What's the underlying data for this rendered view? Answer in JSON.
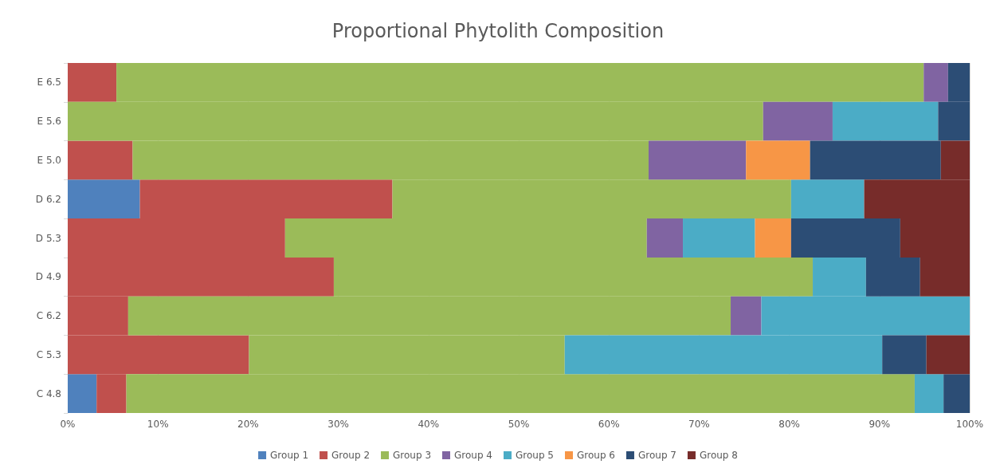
{
  "chart_data": {
    "type": "bar",
    "orientation": "horizontal",
    "stacked": true,
    "title": "Proportional Phytolith Composition",
    "categories": [
      "E 6.5",
      "E 5.6",
      "E 5.0",
      "D 6.2",
      "D 5.3",
      "D 4.9",
      "C 6.2",
      "C 5.3",
      "C 4.8"
    ],
    "series": [
      {
        "name": "Group 1",
        "color": "#4f81bd",
        "values": [
          0,
          0,
          0,
          8.0,
          0,
          0,
          0,
          0,
          3.2
        ]
      },
      {
        "name": "Group 2",
        "color": "#c0504d",
        "values": [
          5.4,
          0,
          7.2,
          28.0,
          24.1,
          29.5,
          6.7,
          20.1,
          3.3
        ]
      },
      {
        "name": "Group 3",
        "color": "#9bbb59",
        "values": [
          89.5,
          77.1,
          57.2,
          44.2,
          40.1,
          53.1,
          66.8,
          35.0,
          87.4
        ]
      },
      {
        "name": "Group 4",
        "color": "#8064a2",
        "values": [
          2.7,
          7.7,
          10.8,
          0,
          4.0,
          0,
          3.4,
          0,
          0
        ]
      },
      {
        "name": "Group 5",
        "color": "#4bacc6",
        "values": [
          0,
          11.7,
          0,
          8.1,
          8.0,
          5.9,
          23.1,
          35.2,
          3.2
        ]
      },
      {
        "name": "Group 6",
        "color": "#f79646",
        "values": [
          0,
          0,
          7.1,
          0,
          4.0,
          0,
          0,
          0,
          0
        ]
      },
      {
        "name": "Group 7",
        "color": "#2c4d75",
        "values": [
          2.4,
          3.5,
          14.5,
          0,
          12.1,
          6.0,
          0,
          4.9,
          2.9
        ]
      },
      {
        "name": "Group 8",
        "color": "#772c2a",
        "values": [
          0,
          0,
          3.2,
          11.7,
          7.7,
          5.5,
          0,
          4.8,
          0
        ]
      }
    ],
    "xlim": [
      0,
      100
    ],
    "xticks": [
      {
        "value": 0,
        "label": "0%"
      },
      {
        "value": 10,
        "label": "10%"
      },
      {
        "value": 20,
        "label": "20%"
      },
      {
        "value": 30,
        "label": "30%"
      },
      {
        "value": 40,
        "label": "40%"
      },
      {
        "value": 50,
        "label": "50%"
      },
      {
        "value": 60,
        "label": "60%"
      },
      {
        "value": 70,
        "label": "70%"
      },
      {
        "value": 80,
        "label": "80%"
      },
      {
        "value": 90,
        "label": "90%"
      },
      {
        "value": 100,
        "label": "100%"
      }
    ],
    "grid": "x",
    "legend": "bottom"
  }
}
